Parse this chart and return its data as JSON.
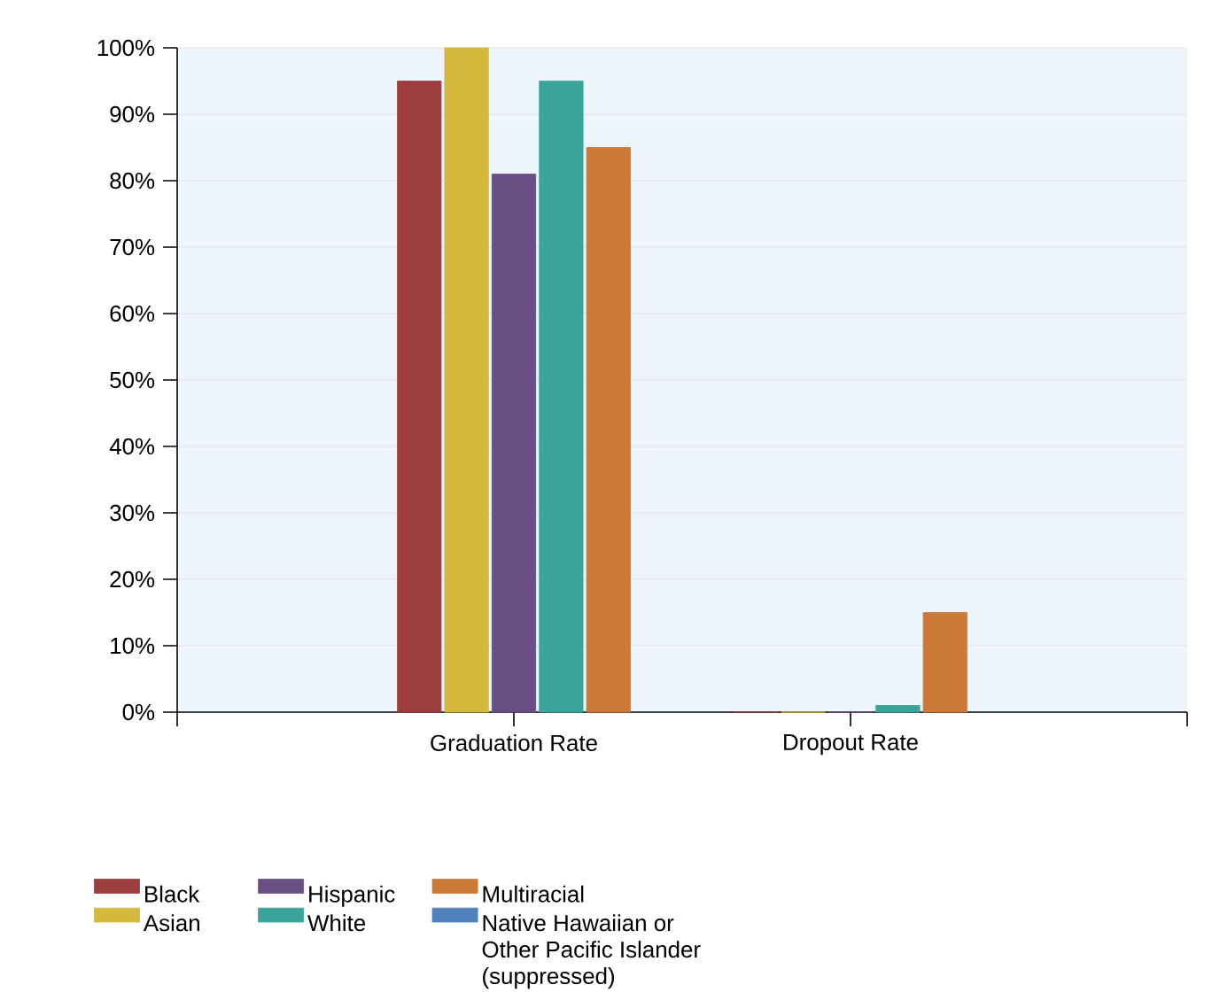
{
  "chart_data": {
    "type": "bar",
    "categories": [
      "Graduation Rate",
      "Dropout Rate"
    ],
    "series": [
      {
        "name": "Black",
        "color": "#9e3d3d",
        "values": [
          95,
          0
        ]
      },
      {
        "name": "Asian",
        "color": "#d4b93c",
        "values": [
          100,
          0
        ]
      },
      {
        "name": "Hispanic",
        "color": "#6a4f85",
        "values": [
          81,
          0
        ]
      },
      {
        "name": "White",
        "color": "#3aa39a",
        "values": [
          95,
          1
        ]
      },
      {
        "name": "Multiracial",
        "color": "#cb7a38",
        "values": [
          85,
          15
        ]
      },
      {
        "name": "Native Hawaiian or Other Pacific Islander (suppressed)",
        "color": "#4f81bd",
        "values": [
          null,
          null
        ]
      }
    ],
    "ylim": [
      0,
      100
    ],
    "yticks": [
      {
        "value": 0,
        "label": "0%"
      },
      {
        "value": 10,
        "label": "10%"
      },
      {
        "value": 20,
        "label": "20%"
      },
      {
        "value": 30,
        "label": "30%"
      },
      {
        "value": 40,
        "label": "40%"
      },
      {
        "value": 50,
        "label": "50%"
      },
      {
        "value": 60,
        "label": "60%"
      },
      {
        "value": 70,
        "label": "70%"
      },
      {
        "value": 80,
        "label": "80%"
      },
      {
        "value": 90,
        "label": "90%"
      },
      {
        "value": 100,
        "label": "100%"
      }
    ],
    "grid": "y",
    "legend": "bottom"
  }
}
